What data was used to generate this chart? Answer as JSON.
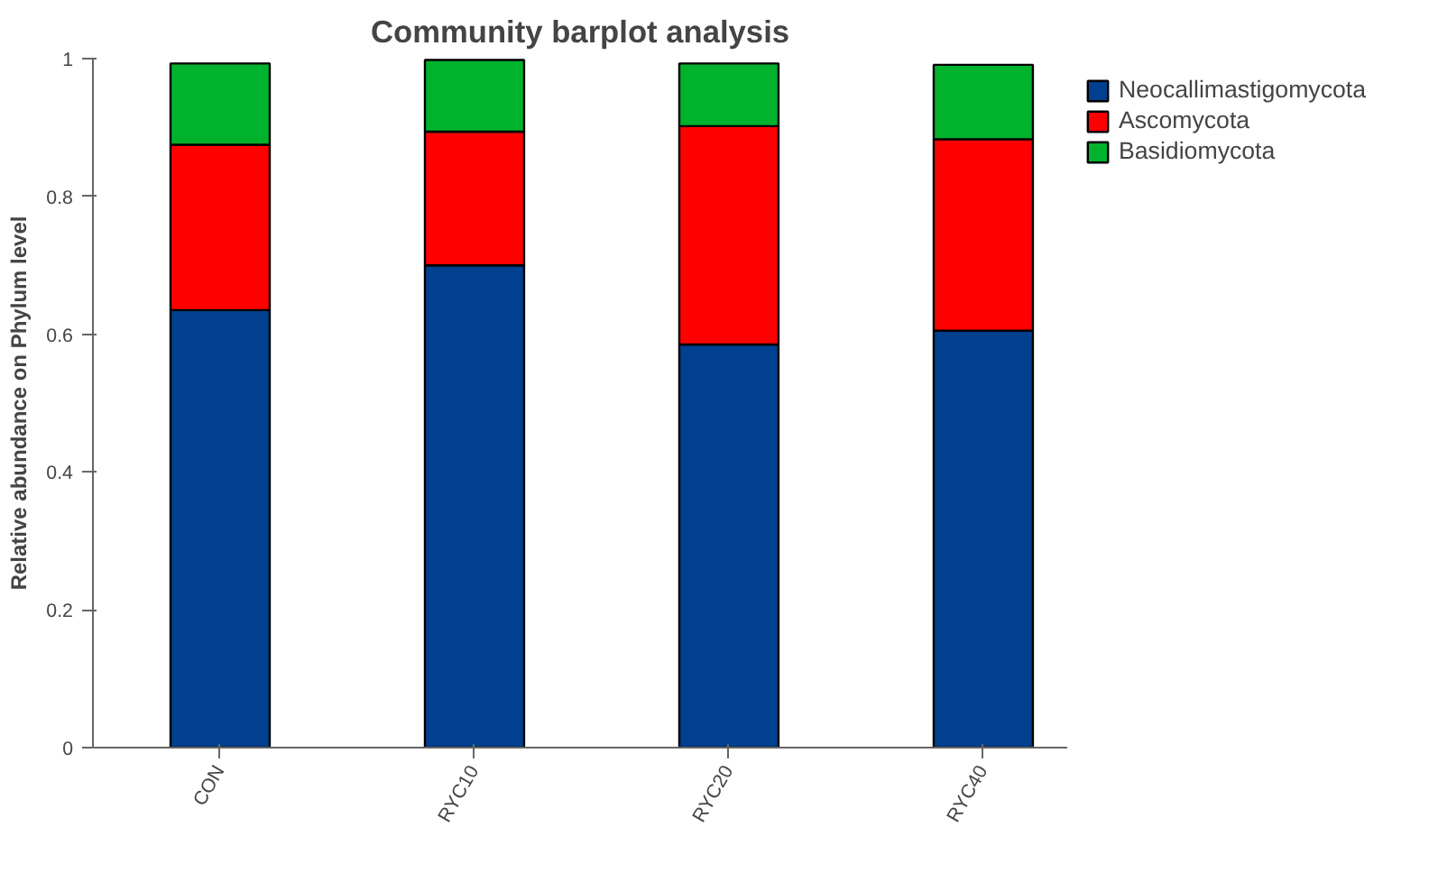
{
  "chart_data": {
    "type": "bar",
    "title": "Community barplot analysis",
    "ylabel": "Relative abundance on Phylum level",
    "categories": [
      "CON",
      "RYC10",
      "RYC20",
      "RYC40"
    ],
    "stacked": true,
    "series": [
      {
        "name": "Neocallimastigomycota",
        "color": "#00408f",
        "values": [
          0.635,
          0.7,
          0.585,
          0.605
        ]
      },
      {
        "name": "Ascomycota",
        "color": "#ff0000",
        "values": [
          0.24,
          0.194,
          0.317,
          0.278
        ]
      },
      {
        "name": "Basidiomycota",
        "color": "#00b22c",
        "values": [
          0.118,
          0.104,
          0.091,
          0.108
        ]
      }
    ],
    "ylim": [
      0,
      1
    ],
    "yticks": [
      0,
      0.2,
      0.4,
      0.6,
      0.8,
      1
    ],
    "grid": false,
    "legend": "right"
  }
}
